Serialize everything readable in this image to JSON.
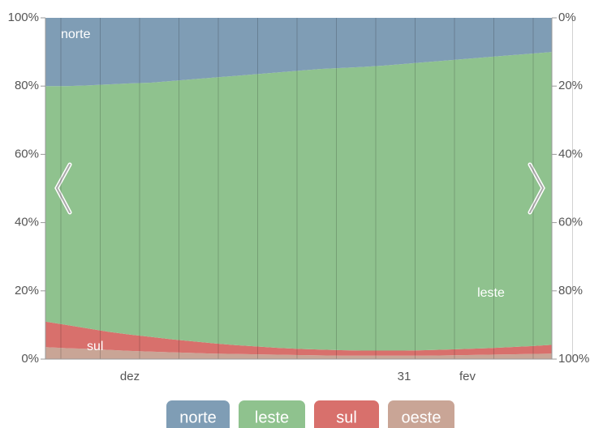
{
  "chart_data": {
    "type": "stacked-area",
    "categories": [
      null,
      null,
      null,
      null,
      "dez",
      null,
      null,
      null,
      null,
      null,
      null,
      null,
      null,
      null,
      null,
      null,
      null,
      "31",
      null,
      null,
      "fev",
      null,
      null,
      null,
      null
    ],
    "series": [
      {
        "name": "oeste",
        "color": "#c9a596",
        "values": [
          3.5,
          3.2,
          3,
          2.7,
          2.4,
          2.2,
          2,
          1.8,
          1.6,
          1.5,
          1.4,
          1.3,
          1.2,
          1.1,
          1.0,
          1.0,
          1.0,
          1.0,
          1.0,
          1.1,
          1.2,
          1.3,
          1.4,
          1.5,
          1.6
        ]
      },
      {
        "name": "sul",
        "color": "#d8706c",
        "values": [
          7.5,
          6.8,
          6,
          5.3,
          4.8,
          4.3,
          3.8,
          3.4,
          3,
          2.6,
          2.3,
          2,
          1.8,
          1.7,
          1.6,
          1.5,
          1.5,
          1.5,
          1.6,
          1.7,
          1.8,
          1.9,
          2.1,
          2.3,
          2.6
        ]
      },
      {
        "name": "leste",
        "color": "#8fc28e",
        "values": [
          69,
          70,
          71.2,
          72.5,
          73.6,
          74.5,
          75.7,
          76.8,
          77.9,
          78.9,
          79.8,
          80.7,
          81.5,
          82.2,
          82.7,
          83.1,
          83.5,
          84,
          84.4,
          84.7,
          85,
          85.3,
          85.5,
          85.7,
          85.8
        ]
      },
      {
        "name": "norte",
        "color": "#7f9db5",
        "values": [
          20,
          20,
          19.8,
          19.5,
          19.2,
          19,
          18.5,
          18,
          17.5,
          17,
          16.5,
          16,
          15.5,
          15,
          14.7,
          14.4,
          14,
          13.5,
          13,
          12.5,
          12,
          11.5,
          11,
          10.5,
          10
        ]
      }
    ],
    "annotations": [
      "norte",
      "leste",
      "sul"
    ],
    "ylim": [
      0,
      100
    ],
    "yticks": [
      {
        "value": 0,
        "label": "0%"
      },
      {
        "value": 20,
        "label": "20%"
      },
      {
        "value": 40,
        "label": "40%"
      },
      {
        "value": 60,
        "label": "60%"
      },
      {
        "value": 80,
        "label": "80%"
      },
      {
        "value": 100,
        "label": "100%"
      }
    ],
    "y2lim": [
      100,
      0
    ],
    "y2ticks": [
      {
        "value": 0,
        "label": "0%"
      },
      {
        "value": 20,
        "label": "20%"
      },
      {
        "value": 40,
        "label": "40%"
      },
      {
        "value": 60,
        "label": "60%"
      },
      {
        "value": 80,
        "label": "80%"
      },
      {
        "value": 100,
        "label": "100%"
      }
    ],
    "legend": "bottom"
  }
}
